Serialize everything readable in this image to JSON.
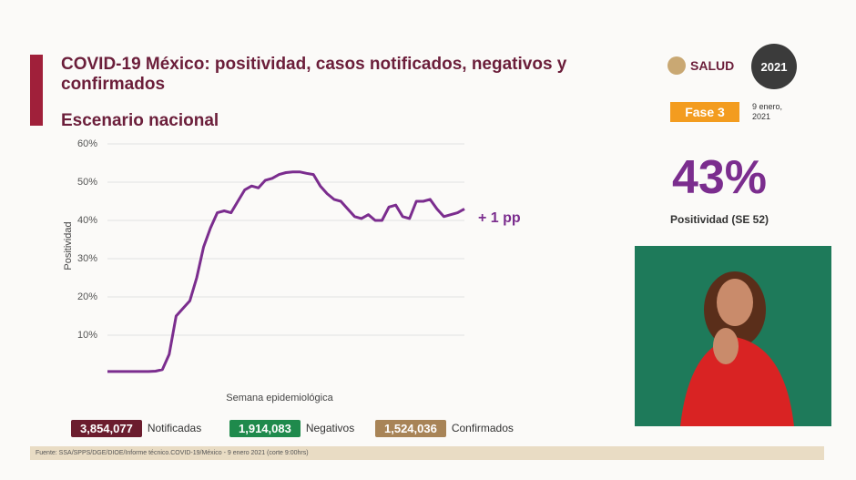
{
  "chart_data": {
    "type": "line",
    "title": "COVID-19 México: positividad, casos notificados, negativos y confirmados",
    "subtitle": "Escenario nacional",
    "y_label": "Positividad",
    "x_label": "Semana epidemiológica",
    "annotation": "+ 1 pp",
    "categories": [
      null,
      null,
      null,
      null,
      null,
      null,
      null,
      null,
      null,
      null,
      null,
      null,
      null,
      null,
      null,
      null,
      null,
      null,
      null,
      null,
      null,
      null,
      null,
      null,
      null,
      null,
      null,
      null,
      null,
      null,
      null,
      null,
      null,
      null,
      null,
      null,
      null,
      null,
      null,
      null,
      null,
      null,
      null,
      null,
      null,
      null,
      null,
      null,
      null,
      null,
      null,
      null,
      null
    ],
    "values": [
      0.5,
      0.5,
      0.5,
      0.5,
      0.5,
      0.5,
      0.5,
      0.6,
      1,
      5,
      15,
      17,
      19,
      25,
      33,
      38,
      42,
      42.5,
      42,
      45,
      48,
      49,
      48.5,
      50.5,
      51,
      52,
      52.5,
      52.7,
      52.7,
      52.3,
      52,
      49,
      47,
      45.5,
      45,
      43,
      41,
      40.5,
      41.5,
      40,
      40,
      43.5,
      44,
      41,
      40.5,
      45,
      45,
      45.5,
      43,
      41,
      41.5,
      42,
      43
    ],
    "color": "#7b2d8e",
    "ylim": [
      0,
      60
    ],
    "yticks": [
      {
        "value": 10,
        "label": "10%"
      },
      {
        "value": 20,
        "label": "20%"
      },
      {
        "value": 30,
        "label": "30%"
      },
      {
        "value": 40,
        "label": "40%"
      },
      {
        "value": 50,
        "label": "50%"
      },
      {
        "value": 60,
        "label": "60%"
      }
    ],
    "grid": true
  },
  "stats": [
    {
      "value": "3,854,077",
      "label": "Notificadas"
    },
    {
      "value": "1,914,083",
      "label": "Negativos"
    },
    {
      "value": "1,524,036",
      "label": "Confirmados"
    }
  ],
  "header": {
    "logo": "SALUD",
    "badge": "2021",
    "phase": "Fase 3",
    "date": "9 enero, 2021"
  },
  "highlight": {
    "value": "43%",
    "label": "Positividad (SE 52)"
  },
  "footer": "Fuente: SSA/SPPS/DGE/DIOE/Informe técnico.COVID-19/México - 9 enero 2021 (corte 9:00hrs)"
}
